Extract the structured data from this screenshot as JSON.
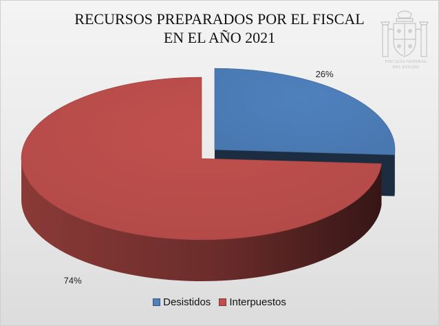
{
  "chart_data": {
    "type": "pie",
    "title_lines": [
      "RECURSOS PREPARADOS POR EL FISCAL",
      "EN EL AÑO 2021"
    ],
    "categories": [
      "Desistidos",
      "Interpuestos"
    ],
    "values": [
      26,
      74
    ],
    "labels": [
      "26%",
      "74%"
    ],
    "colors": [
      "#4f81bd",
      "#c0504d"
    ],
    "exploded": [
      "Desistidos"
    ],
    "style": "3d",
    "legend_position": "bottom"
  },
  "emblem": {
    "lines": [
      "FISCALÍA GENERAL",
      "DEL ESTADO"
    ]
  }
}
